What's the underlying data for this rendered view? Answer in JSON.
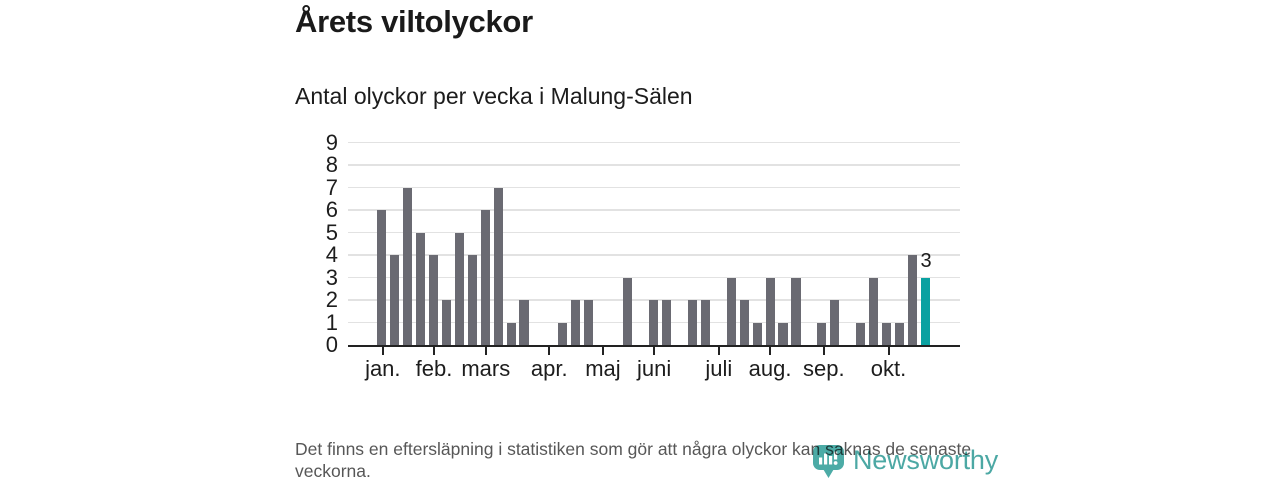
{
  "header": {
    "title": "Årets viltolyckor",
    "subtitle": "Antal olyckor per vecka i Malung-Sälen"
  },
  "chart_data": {
    "type": "bar",
    "title": "Årets viltolyckor",
    "subtitle": "Antal olyckor per vecka i Malung-Sälen",
    "x_unit": "vecka",
    "weeks_total": 43,
    "values": [
      6,
      4,
      7,
      5,
      4,
      2,
      5,
      4,
      6,
      7,
      1,
      2,
      0,
      0,
      1,
      2,
      2,
      0,
      0,
      3,
      0,
      2,
      2,
      0,
      2,
      2,
      0,
      3,
      2,
      1,
      3,
      1,
      3,
      0,
      1,
      2,
      0,
      1,
      3,
      1,
      1,
      4,
      3
    ],
    "y_ticks": [
      0,
      1,
      2,
      3,
      4,
      5,
      6,
      7,
      8,
      9
    ],
    "ylim": [
      0,
      9
    ],
    "grid": true,
    "months": [
      {
        "label": "jan.",
        "week": 1.45
      },
      {
        "label": "feb.",
        "week": 5.4
      },
      {
        "label": "mars",
        "week": 9.4
      },
      {
        "label": "apr.",
        "week": 14.3
      },
      {
        "label": "maj",
        "week": 18.45
      },
      {
        "label": "juni",
        "week": 22.4
      },
      {
        "label": "juli",
        "week": 27.4
      },
      {
        "label": "aug.",
        "week": 31.35
      },
      {
        "label": "sep.",
        "week": 35.5
      },
      {
        "label": "okt.",
        "week": 40.5
      }
    ],
    "highlight_last_bar": true,
    "last_value_label": "3",
    "colors": {
      "bar": "#6a6a72",
      "highlight": "#0aa1a1",
      "gridline": "#e2e2e2",
      "axis": "#222222"
    }
  },
  "footer": {
    "note": "Det finns en eftersläpning i statistiken som gör att några olyckor kan saknas de senaste veckorna."
  },
  "logo": {
    "text": "Newsworthy",
    "icon": "newsworthy-barchart-bubble-icon",
    "color": "#3da19c"
  }
}
